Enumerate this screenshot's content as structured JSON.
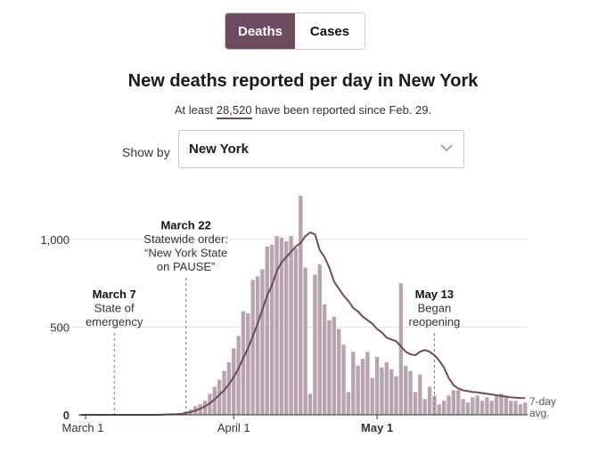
{
  "toggle": {
    "deaths_label": "Deaths",
    "cases_label": "Cases",
    "active": "Deaths"
  },
  "header": {
    "title": "New deaths reported per day in New York",
    "subtitle_prefix": "At least ",
    "subtitle_count": "28,520",
    "subtitle_suffix": " have been reported since Feb. 29."
  },
  "filter": {
    "label": "Show by",
    "selected": "New York",
    "icon": "chevron-down-icon"
  },
  "colors": {
    "accent": "#6e4a5f",
    "bar": "#b8a3ae",
    "line": "#6e4a5f",
    "grid": "#e2e2e2"
  },
  "chart_data": {
    "type": "bar",
    "title": "New deaths reported per day in New York",
    "x_start": "2020-02-29",
    "x_tick_labels": [
      {
        "date": "2020-03-01",
        "label": "March 1",
        "bold": false
      },
      {
        "date": "2020-04-01",
        "label": "April 1",
        "bold": false
      },
      {
        "date": "2020-05-01",
        "label": "May 1",
        "bold": true
      }
    ],
    "y_ticks": [
      {
        "value": 0,
        "label": "0"
      },
      {
        "value": 500,
        "label": "500"
      },
      {
        "value": 1000,
        "label": "1,000"
      }
    ],
    "ylim": [
      0,
      1300
    ],
    "grid": true,
    "series": [
      {
        "kind": "bar",
        "values": [
          0,
          0,
          0,
          0,
          0,
          0,
          0,
          0,
          0,
          0,
          0,
          0,
          0,
          0,
          0,
          0,
          0,
          1,
          2,
          4,
          6,
          10,
          20,
          30,
          50,
          60,
          80,
          120,
          160,
          200,
          250,
          300,
          380,
          450,
          590,
          580,
          770,
          790,
          830,
          960,
          970,
          1020,
          1010,
          990,
          1020,
          950,
          1250,
          840,
          120,
          800,
          860,
          630,
          540,
          560,
          490,
          400,
          130,
          360,
          280,
          320,
          360,
          210,
          330,
          270,
          300,
          260,
          220,
          750,
          280,
          250,
          130,
          230,
          90,
          160,
          110,
          60,
          80,
          110,
          140,
          140,
          90,
          70,
          100,
          110,
          80,
          100,
          80,
          110,
          120,
          100,
          80,
          80,
          60,
          70
        ]
      },
      {
        "kind": "line",
        "name": "7-day avg.",
        "values": [
          0,
          0,
          0,
          0,
          0,
          0,
          0,
          0,
          0,
          0,
          0,
          0,
          0,
          0,
          0,
          0,
          0,
          1,
          2,
          3,
          4,
          6,
          10,
          16,
          25,
          35,
          48,
          65,
          88,
          115,
          140,
          175,
          215,
          265,
          325,
          380,
          450,
          520,
          600,
          680,
          740,
          820,
          870,
          900,
          930,
          960,
          980,
          1020,
          1040,
          1030,
          940,
          900,
          840,
          760,
          720,
          680,
          650,
          610,
          590,
          560,
          540,
          520,
          490,
          470,
          440,
          430,
          420,
          390,
          360,
          345,
          340,
          360,
          370,
          360,
          340,
          310,
          270,
          210,
          170,
          150,
          140,
          135,
          130,
          128,
          124,
          120,
          116,
          112,
          108,
          104,
          100,
          98,
          96,
          95
        ]
      }
    ],
    "annotations": [
      {
        "date": "2020-03-07",
        "title": "March 7",
        "lines": [
          "State of",
          "emergency"
        ]
      },
      {
        "date": "2020-03-22",
        "title": "March 22",
        "lines": [
          "Statewide order:",
          "“New York State",
          "on PAUSE”"
        ]
      },
      {
        "date": "2020-05-13",
        "title": "May 13",
        "lines": [
          "Began",
          "reopening"
        ]
      }
    ],
    "legend": {
      "lines": [
        "7-day",
        "avg."
      ],
      "placement": "line-end"
    }
  }
}
